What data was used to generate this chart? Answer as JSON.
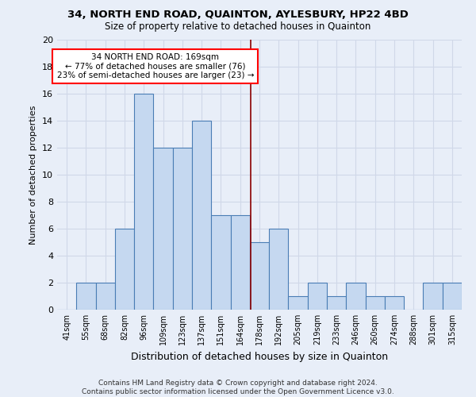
{
  "title": "34, NORTH END ROAD, QUAINTON, AYLESBURY, HP22 4BD",
  "subtitle": "Size of property relative to detached houses in Quainton",
  "xlabel": "Distribution of detached houses by size in Quainton",
  "ylabel": "Number of detached properties",
  "footer": "Contains HM Land Registry data © Crown copyright and database right 2024.\nContains public sector information licensed under the Open Government Licence v3.0.",
  "bin_labels": [
    "41sqm",
    "55sqm",
    "68sqm",
    "82sqm",
    "96sqm",
    "109sqm",
    "123sqm",
    "137sqm",
    "151sqm",
    "164sqm",
    "178sqm",
    "192sqm",
    "205sqm",
    "219sqm",
    "233sqm",
    "246sqm",
    "260sqm",
    "274sqm",
    "288sqm",
    "301sqm",
    "315sqm"
  ],
  "bar_values": [
    0,
    2,
    2,
    6,
    16,
    12,
    12,
    14,
    7,
    7,
    5,
    6,
    1,
    2,
    1,
    2,
    1,
    1,
    0,
    2,
    2
  ],
  "bar_color": "#c5d8f0",
  "bar_edge_color": "#4a7db5",
  "property_line_x": 9.55,
  "annotation_title": "34 NORTH END ROAD: 169sqm",
  "annotation_line1": "← 77% of detached houses are smaller (76)",
  "annotation_line2": "23% of semi-detached houses are larger (23) →",
  "annotation_box_color": "white",
  "annotation_box_edge": "red",
  "vline_color": "#8b0000",
  "grid_color": "#d0d8e8",
  "background_color": "#e8eef8",
  "ylim": [
    0,
    20
  ],
  "yticks": [
    0,
    2,
    4,
    6,
    8,
    10,
    12,
    14,
    16,
    18,
    20
  ],
  "title_fontsize": 9.5,
  "subtitle_fontsize": 8.5,
  "ylabel_fontsize": 8,
  "xlabel_fontsize": 9,
  "tick_fontsize": 7,
  "annot_fontsize": 7.5,
  "footer_fontsize": 6.5
}
